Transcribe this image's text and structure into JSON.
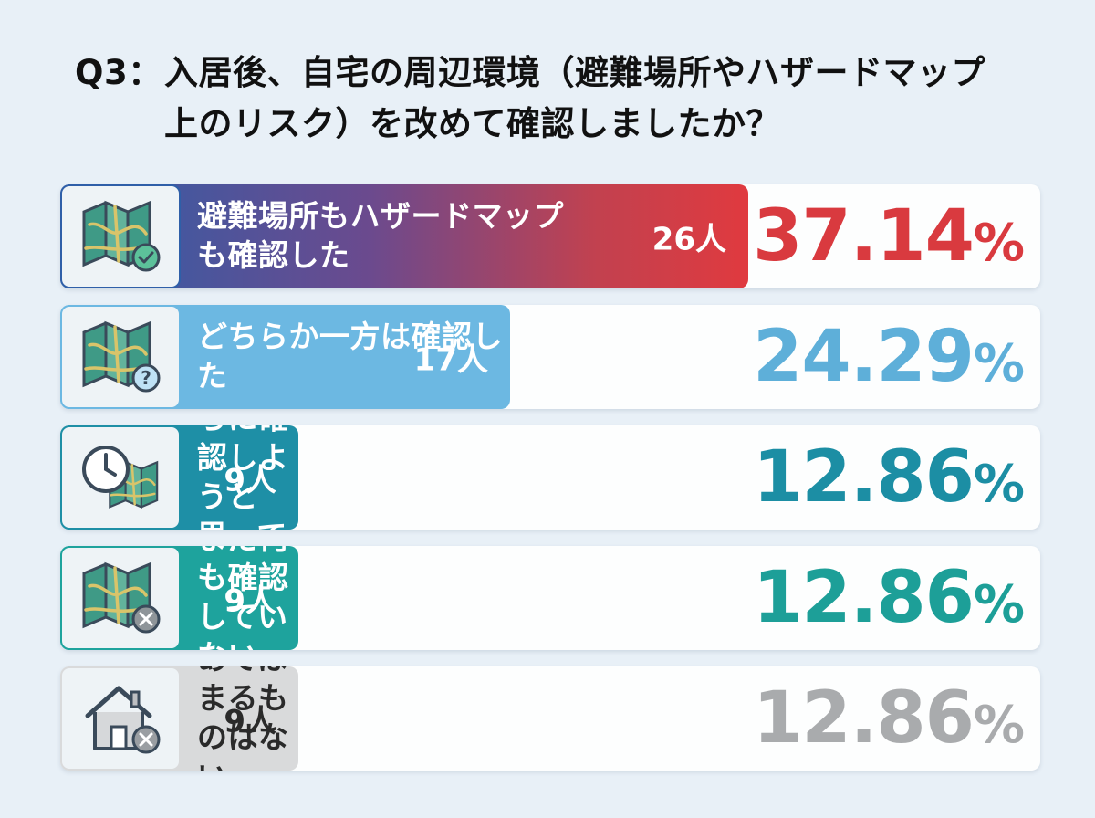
{
  "title": {
    "q_label": "Q3：",
    "line1": "入居後、自宅の周辺環境（避難場所やハザードマップ",
    "line2": "上のリスク）を改めて確認しましたか？"
  },
  "chart_data": {
    "type": "bar",
    "title": "Q3：入居後、自宅の周辺環境（避難場所やハザードマップ上のリスク）を改めて確認しましたか？",
    "count_unit": "人",
    "percent_unit": "%",
    "items": [
      {
        "label": "避難場所もハザードマップも確認した",
        "label_lines": [
          "避難場所もハザードマップ",
          "も確認した"
        ],
        "count": 26,
        "percent": 37.14,
        "percent_text": "37.14",
        "icon": "map-check-icon",
        "bar_color": "gradient",
        "text_color": "#ffffff",
        "percent_color": "#d93a3f"
      },
      {
        "label": "どちらか一方は確認した",
        "label_lines": [
          "どちらか一方は確認した"
        ],
        "count": 17,
        "percent": 24.29,
        "percent_text": "24.29",
        "icon": "map-question-icon",
        "bar_color": "#6cb8e2",
        "text_color": "#ffffff",
        "percent_color": "#5eafd9"
      },
      {
        "label": "近いうちに確認しようと思っている",
        "label_lines": [
          "近いうちに確認しようと",
          "思っている"
        ],
        "count": 9,
        "percent": 12.86,
        "percent_text": "12.86",
        "icon": "clock-map-icon",
        "bar_color": "#1e8fa6",
        "text_color": "#ffffff",
        "percent_color": "#1c8ea4"
      },
      {
        "label": "まだ何も確認していない",
        "label_lines": [
          "まだ何も確認していない"
        ],
        "count": 9,
        "percent": 12.86,
        "percent_text": "12.86",
        "icon": "map-x-icon",
        "bar_color": "#1ea39d",
        "text_color": "#ffffff",
        "percent_color": "#1d9f98"
      },
      {
        "label": "あてはまるものはない",
        "label_lines": [
          "あてはまるものはない"
        ],
        "count": 9,
        "percent": 12.86,
        "percent_text": "12.86",
        "icon": "house-x-icon",
        "bar_color": "#d9dadb",
        "text_color": "#2a2a2a",
        "percent_color": "#a9abad"
      }
    ]
  }
}
